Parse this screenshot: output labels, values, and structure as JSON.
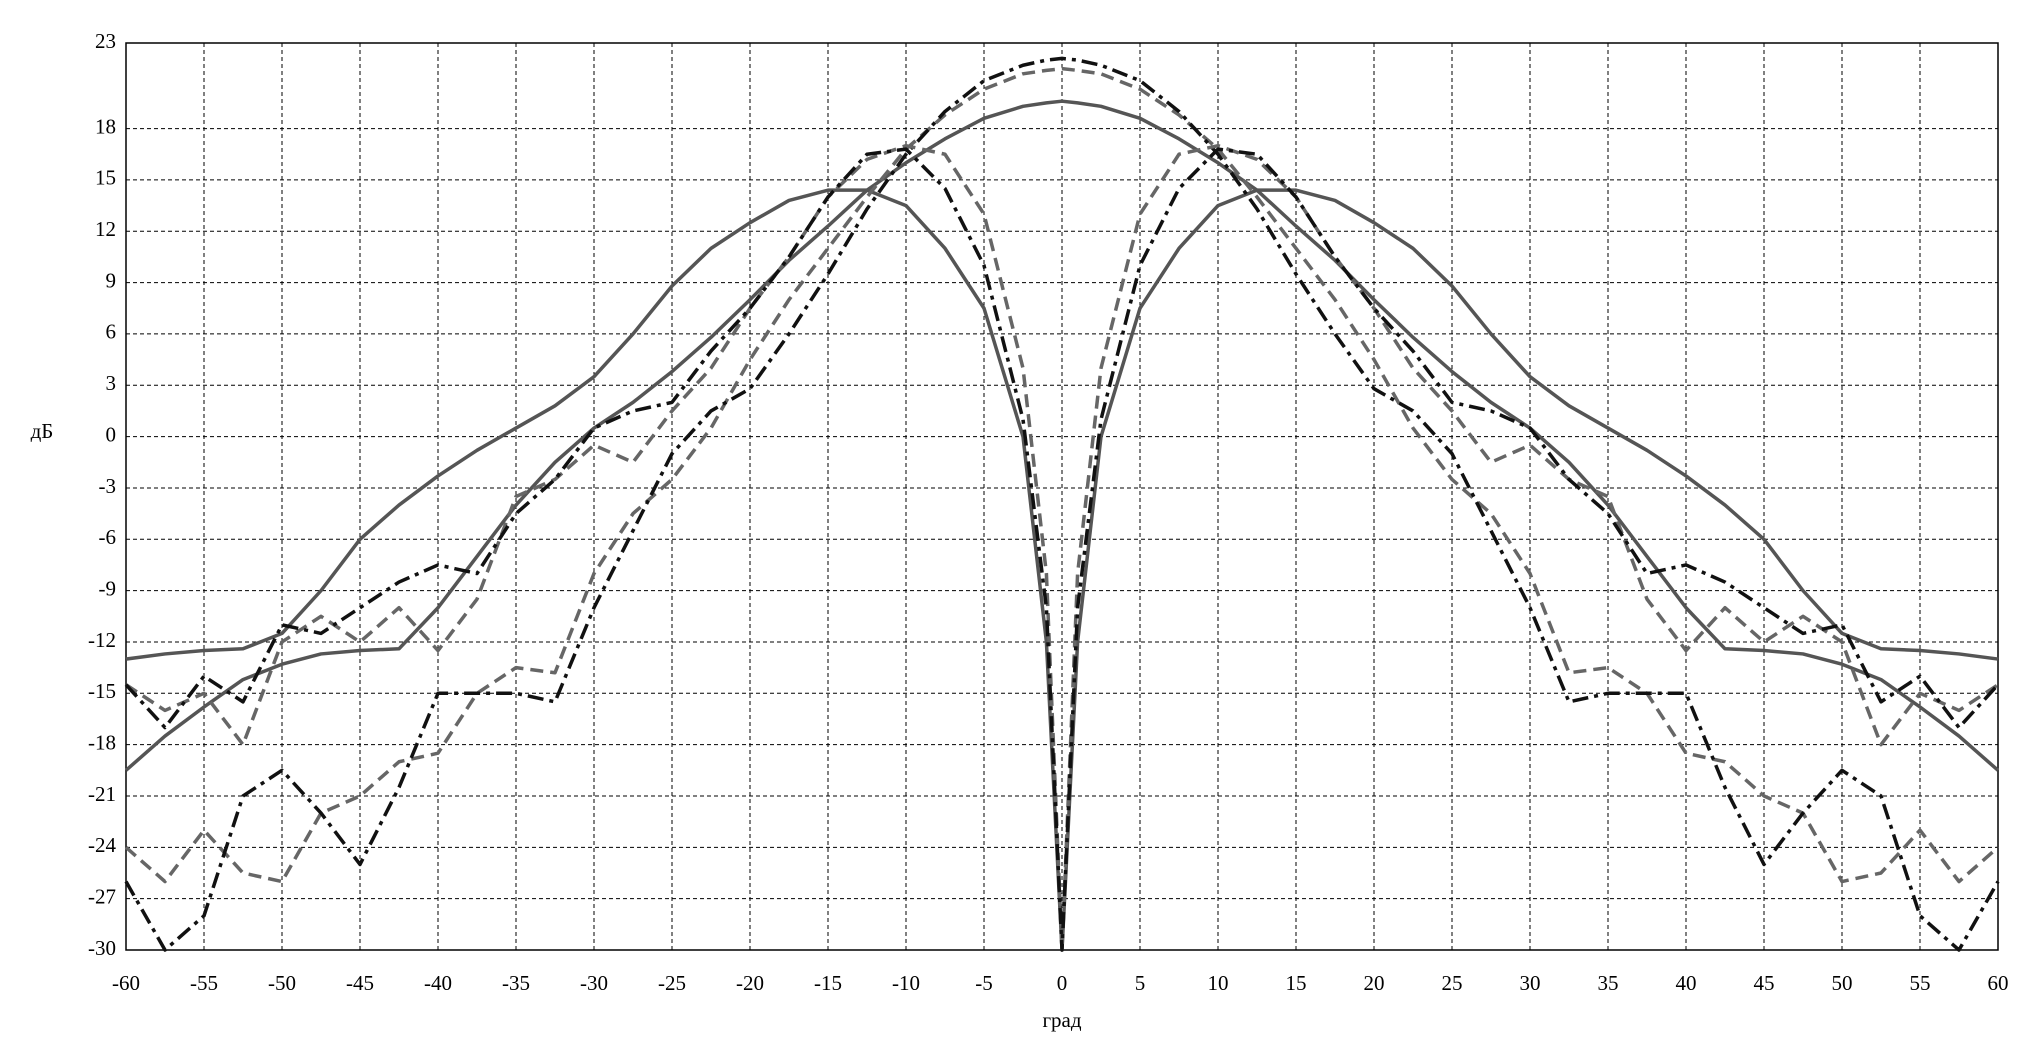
{
  "chart_data": {
    "type": "line",
    "x_label": "град",
    "y_label": "дБ",
    "x": [
      -60,
      -57.5,
      -55,
      -52.5,
      -50,
      -47.5,
      -45,
      -42.5,
      -40,
      -37.5,
      -35,
      -32.5,
      -30,
      -27.5,
      -25,
      -22.5,
      -20,
      -17.5,
      -15,
      -12.5,
      -10,
      -7.5,
      -5,
      -2.5,
      -1,
      0,
      1,
      2.5,
      5,
      7.5,
      10,
      12.5,
      15,
      17.5,
      20,
      22.5,
      25,
      27.5,
      30,
      32.5,
      35,
      37.5,
      40,
      42.5,
      45,
      47.5,
      50,
      52.5,
      55,
      57.5,
      60
    ],
    "series": [
      {
        "color": "#555555",
        "style": "solid",
        "values": [
          -13,
          -12.7,
          -12.5,
          -12.4,
          -11.5,
          -9,
          -6,
          -4,
          -2.3,
          -0.8,
          0.5,
          1.8,
          3.5,
          6,
          8.8,
          11,
          12.5,
          13.8,
          14.4,
          14.4,
          13.5,
          11,
          7.5,
          0,
          -12,
          -30,
          -12,
          0,
          7.5,
          11,
          13.5,
          14.4,
          14.4,
          13.8,
          12.5,
          11,
          8.8,
          6,
          3.5,
          1.8,
          0.5,
          -0.8,
          -2.3,
          -4,
          -6,
          -9,
          -11.5,
          -12.4,
          -12.5,
          -12.7,
          -13
        ]
      },
      {
        "color": "#555555",
        "style": "solid",
        "values": [
          -19.5,
          -17.5,
          -15.8,
          -14.2,
          -13.3,
          -12.7,
          -12.5,
          -12.4,
          -10,
          -7,
          -4,
          -1.5,
          0.5,
          2,
          3.8,
          5.8,
          8,
          10.3,
          12.3,
          14.4,
          16,
          17.4,
          18.6,
          19.3,
          19.5,
          19.6,
          19.5,
          19.3,
          18.6,
          17.4,
          16,
          14.4,
          12.3,
          10.3,
          8,
          5.8,
          3.8,
          2,
          0.5,
          -1.5,
          -4,
          -7,
          -10,
          -12.4,
          -12.5,
          -12.7,
          -13.3,
          -14.2,
          -15.8,
          -17.5,
          -19.5
        ]
      },
      {
        "color": "#666666",
        "style": "dashed",
        "values": [
          -24,
          -26,
          -23,
          -25.5,
          -26,
          -22,
          -21,
          -19,
          -18.5,
          -15,
          -13.5,
          -13.8,
          -8,
          -4.5,
          -2.5,
          0.5,
          4.5,
          8,
          11,
          14,
          16.8,
          18.8,
          20.3,
          21.2,
          21.4,
          21.5,
          21.4,
          21.2,
          20.3,
          18.8,
          16.8,
          14,
          11,
          8,
          4.5,
          0.5,
          -2.5,
          -4.5,
          -8,
          -13.8,
          -13.5,
          -15,
          -18.5,
          -19,
          -21,
          -22,
          -26,
          -25.5,
          -23,
          -26,
          -24
        ]
      },
      {
        "color": "#111111",
        "style": "dashdot",
        "values": [
          -26,
          -30,
          -28,
          -21,
          -19.5,
          -22,
          -25,
          -20.5,
          -15,
          -15,
          -15,
          -15.5,
          -10,
          -5.5,
          -1,
          1.5,
          2.8,
          6,
          9.5,
          13.3,
          16.5,
          19,
          20.8,
          21.7,
          22,
          22.1,
          22,
          21.7,
          20.8,
          19,
          16.5,
          13.3,
          9.5,
          6,
          2.8,
          1.5,
          -1,
          -5.5,
          -10,
          -15.5,
          -15,
          -15,
          -15,
          -20.5,
          -25,
          -22,
          -19.5,
          -21,
          -28,
          -30,
          -26
        ]
      },
      {
        "color": "#666666",
        "style": "dashed",
        "values": [
          -14.5,
          -16,
          -15,
          -18,
          -12,
          -10.5,
          -12,
          -10,
          -12.5,
          -9.5,
          -3.5,
          -2.5,
          -0.5,
          -1.5,
          1.5,
          4,
          7.5,
          10.5,
          14,
          16.2,
          17,
          16.5,
          13,
          4,
          -8,
          -30,
          -8,
          4,
          13,
          16.5,
          17,
          16.2,
          14,
          10.5,
          7.5,
          4,
          1.5,
          -1.5,
          -0.5,
          -2.5,
          -3.5,
          -9.5,
          -12.5,
          -10,
          -12,
          -10.5,
          -12,
          -18,
          -15,
          -16,
          -14.5
        ]
      },
      {
        "color": "#111111",
        "style": "dashdot",
        "values": [
          -14.5,
          -17,
          -14,
          -15.5,
          -11,
          -11.5,
          -10,
          -8.5,
          -7.5,
          -8,
          -4.5,
          -2.5,
          0.5,
          1.5,
          2,
          5,
          7.5,
          10.5,
          14,
          16.5,
          16.8,
          14.5,
          10,
          1,
          -10,
          -30,
          -10,
          1,
          10,
          14.5,
          16.8,
          16.5,
          14,
          10.5,
          7.5,
          5,
          2,
          1.5,
          0.5,
          -2.5,
          -4.5,
          -8,
          -7.5,
          -8.5,
          -10,
          -11.5,
          -11,
          -15.5,
          -14,
          -17,
          -14.5
        ]
      }
    ],
    "xlim": [
      -60,
      60
    ],
    "xticks": [
      -60,
      -55,
      -50,
      -45,
      -40,
      -35,
      -30,
      -25,
      -20,
      -15,
      -10,
      -5,
      0,
      5,
      10,
      15,
      20,
      25,
      30,
      35,
      40,
      45,
      50,
      55,
      60
    ],
    "ylim": [
      -30,
      23
    ],
    "yticks": [
      -30,
      -27,
      -24,
      -21,
      -18,
      -15,
      -12,
      -9,
      -6,
      -3,
      0,
      3,
      6,
      9,
      12,
      15,
      18,
      23
    ],
    "grid": true
  }
}
